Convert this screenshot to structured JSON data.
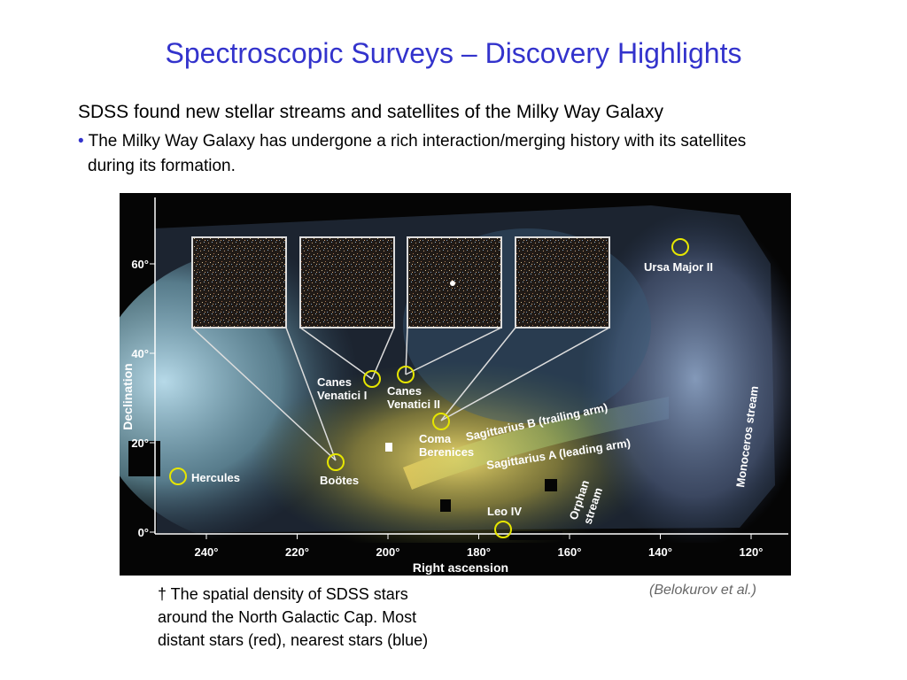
{
  "slide": {
    "title": "Spectroscopic Surveys – Discovery Highlights",
    "heading": "SDSS found new stellar streams and satellites of the Milky Way Galaxy",
    "bullet_marker": "•",
    "bullet_line1": "The Milky Way Galaxy has undergone a rich interaction/merging history with its satellites",
    "bullet_line2": "during its formation.",
    "caption_lines": [
      "† The spatial density of SDSS stars",
      "around the North Galactic Cap. Most",
      "distant stars (red), nearest stars (blue)"
    ],
    "credit": "(Belokurov et al.)"
  },
  "figure": {
    "xlabel": "Right ascension",
    "ylabel": "Declination",
    "x_ticks": [
      "240°",
      "220°",
      "200°",
      "180°",
      "160°",
      "140°",
      "120°"
    ],
    "y_ticks": [
      "60°",
      "40°",
      "20°",
      "0°"
    ],
    "labels": {
      "ursa_major_ii": "Ursa Major II",
      "canes_venatici_i_1": "Canes",
      "canes_venatici_i_2": "Venatici I",
      "canes_venatici_ii_1": "Canes",
      "canes_venatici_ii_2": "Venatici II",
      "coma_berenices_1": "Coma",
      "coma_berenices_2": "Berenices",
      "hercules": "Hercules",
      "bootes": "Boötes",
      "leo_iv": "Leo IV",
      "sagittarius_b": "Sagittarius B (trailing arm)",
      "sagittarius_a": "Sagittarius A (leading arm)",
      "orphan_1": "Orphan",
      "orphan_2": "stream",
      "monoceros": "Monoceros stream"
    },
    "colors": {
      "circle": "#e6e600",
      "background": "#050505",
      "near_stars": "#9ad4ff",
      "far_stars": "#d9863a"
    }
  }
}
